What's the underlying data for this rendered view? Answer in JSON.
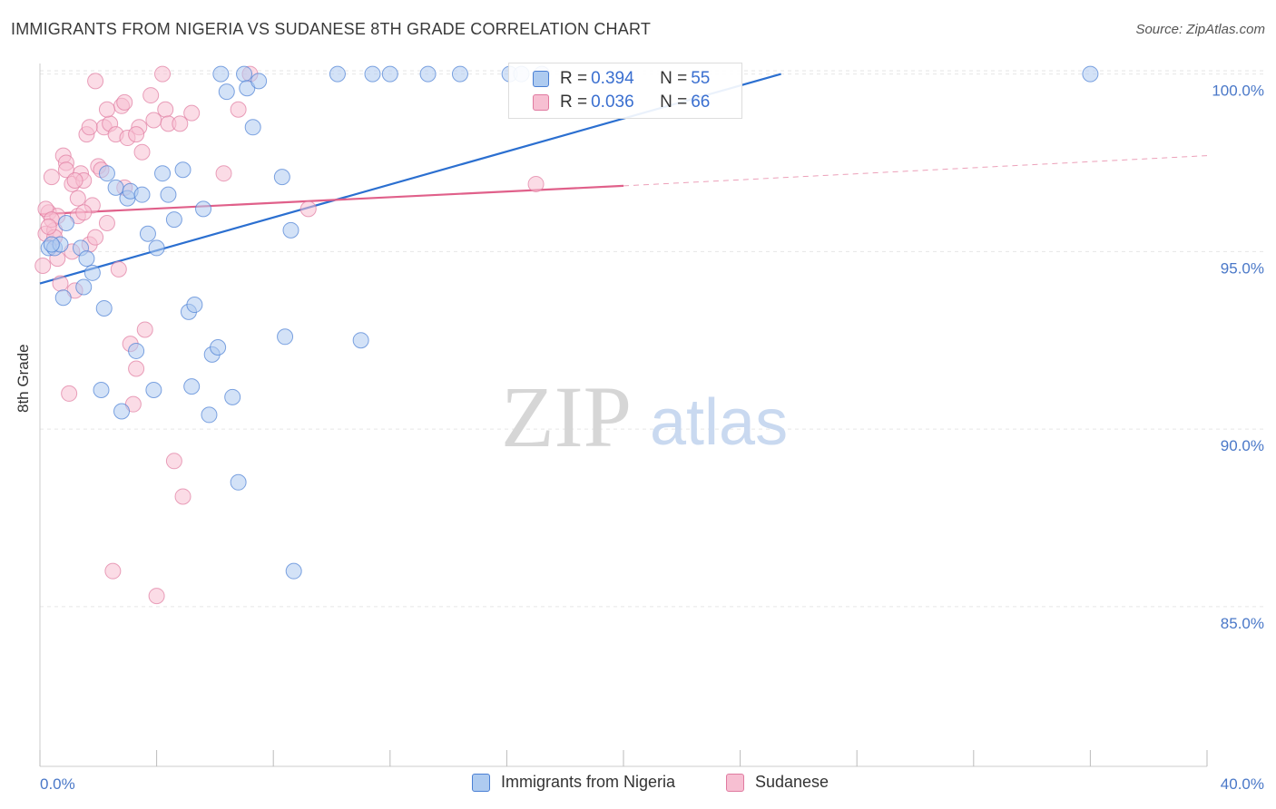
{
  "title": "IMMIGRANTS FROM NIGERIA VS SUDANESE 8TH GRADE CORRELATION CHART",
  "source": "Source: ZipAtlas.com",
  "watermark": {
    "zip": "ZIP",
    "atlas": "atlas"
  },
  "legend": {
    "rows": [
      {
        "r_label": "R = ",
        "r_value": "0.394",
        "n_label": "N = ",
        "n_value": "55"
      },
      {
        "r_label": "R = ",
        "r_value": "0.036",
        "n_label": "N = ",
        "n_value": "66"
      }
    ]
  },
  "bottom_legend": [
    "Immigrants from Nigeria",
    "Sudanese"
  ],
  "colors": {
    "nigeria_fill": "#aecbf0",
    "nigeria_stroke": "#4a7fd4",
    "nigeria_line": "#2b6fd0",
    "sudanese_fill": "#f7bfd2",
    "sudanese_stroke": "#e07aa0",
    "sudanese_line": "#e0608a",
    "tick_text": "#4a78c8",
    "grid": "#e6e6e6"
  },
  "chart_data": {
    "type": "scatter",
    "title": "IMMIGRANTS FROM NIGERIA VS SUDANESE 8TH GRADE CORRELATION CHART",
    "xlabel": "",
    "ylabel": "8th Grade",
    "xlim": [
      0,
      40
    ],
    "ylim": [
      80.5,
      100.5
    ],
    "x_tick_labels": [
      "0.0%",
      "40.0%"
    ],
    "y_ticks": [
      85,
      90,
      95,
      100
    ],
    "y_tick_labels": [
      "85.0%",
      "90.0%",
      "95.0%",
      "100.0%"
    ],
    "grid": "horizontal dashed",
    "legend_placement": "top-center",
    "series": [
      {
        "name": "Immigrants from Nigeria",
        "R": 0.394,
        "N": 55,
        "trend": {
          "x0": 0.0,
          "y0": 94.1,
          "x1": 25.4,
          "y1": 100.0
        },
        "points": [
          [
            0.3,
            95.1
          ],
          [
            0.5,
            95.1
          ],
          [
            0.7,
            95.2
          ],
          [
            0.8,
            93.7
          ],
          [
            0.9,
            95.8
          ],
          [
            1.4,
            95.1
          ],
          [
            1.5,
            94.0
          ],
          [
            1.6,
            94.8
          ],
          [
            1.8,
            94.4
          ],
          [
            2.1,
            91.1
          ],
          [
            2.2,
            93.4
          ],
          [
            2.3,
            97.2
          ],
          [
            2.6,
            96.8
          ],
          [
            2.8,
            90.5
          ],
          [
            3.0,
            96.5
          ],
          [
            3.1,
            96.7
          ],
          [
            3.3,
            92.2
          ],
          [
            3.5,
            96.6
          ],
          [
            3.7,
            95.5
          ],
          [
            3.9,
            91.1
          ],
          [
            4.0,
            95.1
          ],
          [
            4.2,
            97.2
          ],
          [
            4.4,
            96.6
          ],
          [
            4.6,
            95.9
          ],
          [
            4.9,
            97.3
          ],
          [
            5.1,
            93.3
          ],
          [
            5.2,
            91.2
          ],
          [
            5.3,
            93.5
          ],
          [
            5.6,
            96.2
          ],
          [
            5.8,
            90.4
          ],
          [
            5.9,
            92.1
          ],
          [
            6.1,
            92.3
          ],
          [
            6.2,
            100.0
          ],
          [
            6.4,
            99.5
          ],
          [
            6.6,
            90.9
          ],
          [
            6.8,
            88.5
          ],
          [
            7.0,
            100.0
          ],
          [
            7.1,
            99.6
          ],
          [
            7.3,
            98.5
          ],
          [
            7.5,
            99.8
          ],
          [
            8.3,
            97.1
          ],
          [
            8.4,
            92.6
          ],
          [
            8.6,
            95.6
          ],
          [
            8.7,
            86.0
          ],
          [
            10.2,
            100.0
          ],
          [
            11.0,
            92.5
          ],
          [
            11.4,
            100.0
          ],
          [
            12.0,
            100.0
          ],
          [
            13.3,
            100.0
          ],
          [
            14.4,
            100.0
          ],
          [
            16.1,
            100.0
          ],
          [
            16.5,
            100.0
          ],
          [
            17.2,
            100.0
          ],
          [
            36.0,
            100.0
          ],
          [
            0.4,
            95.2
          ]
        ]
      },
      {
        "name": "Sudanese",
        "R": 0.036,
        "N": 66,
        "trend": {
          "x0": 0.0,
          "y0": 96.05,
          "x1": 20.0,
          "y1": 96.85,
          "dash_to_x": 40.0,
          "dash_to_y": 97.7
        },
        "points": [
          [
            0.1,
            94.6
          ],
          [
            0.2,
            95.5
          ],
          [
            0.3,
            96.1
          ],
          [
            0.4,
            97.1
          ],
          [
            0.5,
            95.6
          ],
          [
            0.6,
            96.0
          ],
          [
            0.7,
            94.1
          ],
          [
            0.8,
            97.7
          ],
          [
            0.9,
            97.5
          ],
          [
            1.0,
            91.0
          ],
          [
            1.1,
            96.9
          ],
          [
            1.2,
            93.9
          ],
          [
            1.3,
            96.0
          ],
          [
            1.4,
            97.2
          ],
          [
            1.5,
            97.0
          ],
          [
            1.6,
            98.3
          ],
          [
            1.7,
            95.2
          ],
          [
            1.8,
            96.3
          ],
          [
            1.9,
            95.4
          ],
          [
            2.0,
            97.4
          ],
          [
            2.1,
            97.3
          ],
          [
            2.2,
            98.5
          ],
          [
            2.3,
            95.8
          ],
          [
            2.4,
            98.6
          ],
          [
            2.5,
            86.0
          ],
          [
            2.6,
            98.3
          ],
          [
            2.7,
            94.5
          ],
          [
            2.8,
            99.1
          ],
          [
            2.9,
            96.8
          ],
          [
            3.0,
            98.2
          ],
          [
            3.1,
            92.4
          ],
          [
            3.2,
            90.7
          ],
          [
            3.3,
            91.7
          ],
          [
            3.4,
            98.5
          ],
          [
            3.5,
            97.8
          ],
          [
            3.6,
            92.8
          ],
          [
            3.8,
            99.4
          ],
          [
            3.9,
            98.7
          ],
          [
            4.0,
            85.3
          ],
          [
            4.2,
            100.0
          ],
          [
            4.3,
            99.0
          ],
          [
            4.4,
            98.6
          ],
          [
            4.6,
            89.1
          ],
          [
            4.8,
            98.6
          ],
          [
            4.9,
            88.1
          ],
          [
            5.2,
            98.9
          ],
          [
            6.3,
            97.2
          ],
          [
            7.2,
            100.0
          ],
          [
            9.2,
            96.2
          ],
          [
            17.0,
            96.9
          ],
          [
            0.2,
            96.2
          ],
          [
            0.4,
            95.9
          ],
          [
            0.6,
            94.8
          ],
          [
            0.9,
            97.3
          ],
          [
            1.1,
            95.0
          ],
          [
            1.3,
            96.5
          ],
          [
            1.7,
            98.5
          ],
          [
            1.9,
            99.8
          ],
          [
            2.3,
            99.0
          ],
          [
            2.9,
            99.2
          ],
          [
            3.3,
            98.3
          ],
          [
            0.5,
            95.4
          ],
          [
            1.2,
            97.0
          ],
          [
            0.3,
            95.7
          ],
          [
            6.8,
            99.0
          ],
          [
            1.5,
            96.1
          ]
        ]
      }
    ]
  }
}
